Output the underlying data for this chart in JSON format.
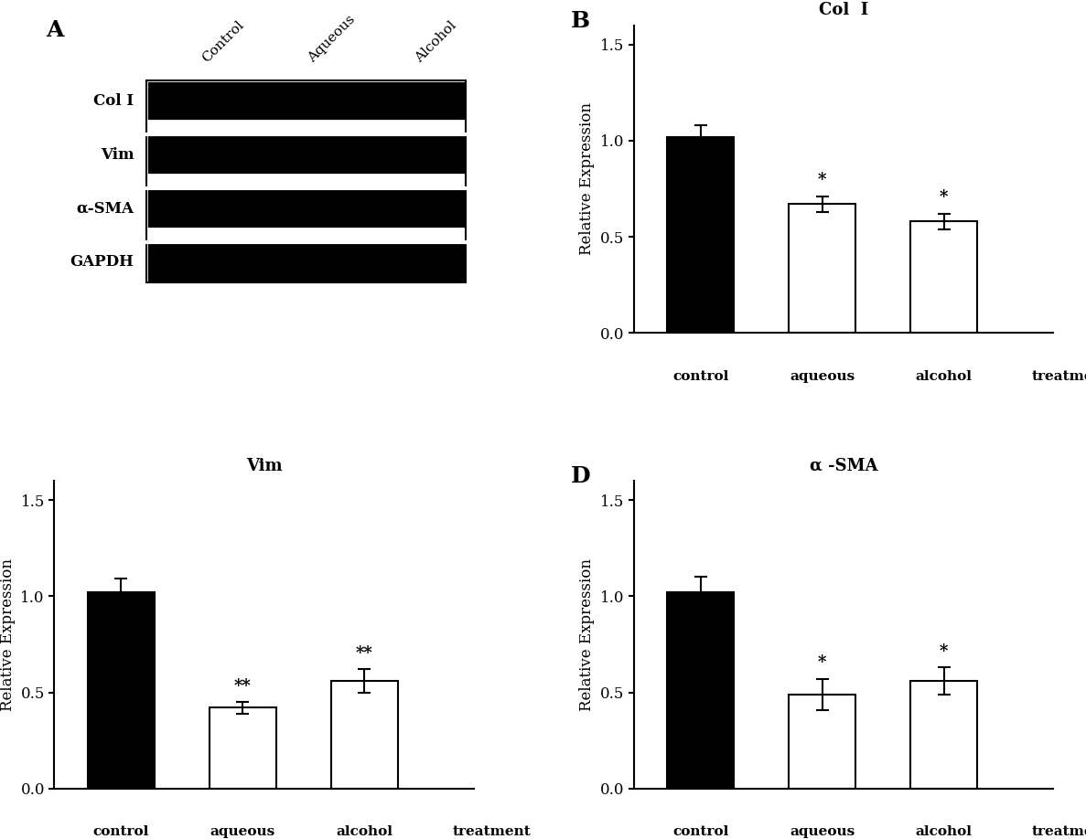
{
  "panel_A": {
    "labels_top": [
      "Control",
      "Aqueous",
      "Alcohol"
    ],
    "labels_left": [
      "Col I",
      "Vim",
      "α-SMA",
      "GAPDH"
    ],
    "n_bands": 4,
    "n_lanes": 3
  },
  "panel_B": {
    "title": "Col  I",
    "ylabel": "Relative Expression",
    "xlabel_parts": [
      "control",
      "aqueous",
      "alcohol",
      "treatment"
    ],
    "categories": [
      "control",
      "aqueous",
      "alcohol"
    ],
    "values": [
      1.02,
      0.67,
      0.58
    ],
    "errors": [
      0.06,
      0.04,
      0.04
    ],
    "colors": [
      "#000000",
      "#ffffff",
      "#ffffff"
    ],
    "edge_colors": [
      "#000000",
      "#000000",
      "#000000"
    ],
    "sig_labels": [
      "",
      "*",
      "*"
    ],
    "ylim": [
      0,
      1.6
    ],
    "yticks": [
      0.0,
      0.5,
      1.0,
      1.5
    ]
  },
  "panel_C": {
    "title": "Vim",
    "ylabel": "Relative Expression",
    "xlabel_parts": [
      "control",
      "aqueous",
      "alcohol",
      "treatment"
    ],
    "categories": [
      "control",
      "aqueous",
      "alcohol"
    ],
    "values": [
      1.02,
      0.42,
      0.56
    ],
    "errors": [
      0.07,
      0.03,
      0.06
    ],
    "colors": [
      "#000000",
      "#ffffff",
      "#ffffff"
    ],
    "edge_colors": [
      "#000000",
      "#000000",
      "#000000"
    ],
    "sig_labels": [
      "",
      "**",
      "**"
    ],
    "ylim": [
      0,
      1.6
    ],
    "yticks": [
      0.0,
      0.5,
      1.0,
      1.5
    ]
  },
  "panel_D": {
    "title": "α -SMA",
    "ylabel": "Relative Expression",
    "xlabel_parts": [
      "control",
      "aqueous",
      "alcohol",
      "treatment"
    ],
    "categories": [
      "control",
      "aqueous",
      "alcohol"
    ],
    "values": [
      1.02,
      0.49,
      0.56
    ],
    "errors": [
      0.08,
      0.08,
      0.07
    ],
    "colors": [
      "#000000",
      "#ffffff",
      "#ffffff"
    ],
    "edge_colors": [
      "#000000",
      "#000000",
      "#000000"
    ],
    "sig_labels": [
      "",
      "*",
      "*"
    ],
    "ylim": [
      0,
      1.6
    ],
    "yticks": [
      0.0,
      0.5,
      1.0,
      1.5
    ]
  },
  "background_color": "#ffffff",
  "font_family": "serif"
}
